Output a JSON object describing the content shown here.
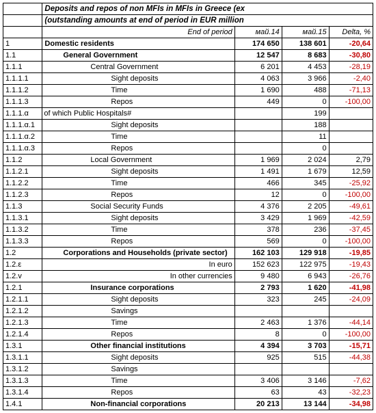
{
  "title1": "Deposits and repos of non MFIs in MFIs in Greece (ex",
  "title2": "(outstanding amounts at end of period in EUR million",
  "endOfPeriod": "End of period",
  "headers": {
    "c1": "май.14",
    "c2": "май.15",
    "c3": "Delta, %"
  },
  "rows": [
    {
      "code": "1",
      "label": "Domestic residents",
      "cls": "bold",
      "ind": "",
      "v1": "174 650",
      "v2": "138 601",
      "d": "-20,64",
      "neg": true
    },
    {
      "code": "1.1",
      "label": "General Government",
      "cls": "bold",
      "ind": "indent1",
      "v1": "12 547",
      "v2": "8 683",
      "d": "-30,80",
      "neg": true
    },
    {
      "code": "1.1.1",
      "label": "Central Government",
      "cls": "",
      "ind": "indent2",
      "v1": "6 201",
      "v2": "4 453",
      "d": "-28,19",
      "neg": true
    },
    {
      "code": "1.1.1.1",
      "label": "Sight deposits",
      "cls": "",
      "ind": "indent3",
      "v1": "4 063",
      "v2": "3 966",
      "d": "-2,40",
      "neg": true
    },
    {
      "code": "1.1.1.2",
      "label": "Time",
      "cls": "",
      "ind": "indent3",
      "v1": "1 690",
      "v2": "488",
      "d": "-71,13",
      "neg": true
    },
    {
      "code": "1.1.1.3",
      "label": "Repos",
      "cls": "",
      "ind": "indent3",
      "v1": "449",
      "v2": "0",
      "d": "-100,00",
      "neg": true
    },
    {
      "code": "1.1.1.α",
      "label": "of which       Public Hospitals#",
      "cls": "",
      "ind": "ofwhich",
      "v1": "",
      "v2": "199",
      "d": "",
      "neg": false
    },
    {
      "code": "1.1.1.α.1",
      "label": "Sight deposits",
      "cls": "",
      "ind": "indent3",
      "v1": "",
      "v2": "188",
      "d": "",
      "neg": false
    },
    {
      "code": "1.1.1.α.2",
      "label": "Time",
      "cls": "",
      "ind": "indent3",
      "v1": "",
      "v2": "11",
      "d": "",
      "neg": false
    },
    {
      "code": "1.1.1.α.3",
      "label": "Repos",
      "cls": "",
      "ind": "indent3",
      "v1": "",
      "v2": "0",
      "d": "",
      "neg": false
    },
    {
      "code": "1.1.2",
      "label": "Local Government",
      "cls": "",
      "ind": "indent2",
      "v1": "1 969",
      "v2": "2 024",
      "d": "2,79",
      "neg": false
    },
    {
      "code": "1.1.2.1",
      "label": "Sight deposits",
      "cls": "",
      "ind": "indent3",
      "v1": "1 491",
      "v2": "1 679",
      "d": "12,59",
      "neg": false
    },
    {
      "code": "1.1.2.2",
      "label": "Time",
      "cls": "",
      "ind": "indent3",
      "v1": "466",
      "v2": "345",
      "d": "-25,92",
      "neg": true
    },
    {
      "code": "1.1.2.3",
      "label": "Repos",
      "cls": "",
      "ind": "indent3",
      "v1": "12",
      "v2": "0",
      "d": "-100,00",
      "neg": true
    },
    {
      "code": "1.1.3",
      "label": "Social Security Funds",
      "cls": "",
      "ind": "indent2",
      "v1": "4 376",
      "v2": "2 205",
      "d": "-49,61",
      "neg": true
    },
    {
      "code": "1.1.3.1",
      "label": "Sight deposits",
      "cls": "",
      "ind": "indent3",
      "v1": "3 429",
      "v2": "1 969",
      "d": "-42,59",
      "neg": true
    },
    {
      "code": "1.1.3.2",
      "label": "Time",
      "cls": "",
      "ind": "indent3",
      "v1": "378",
      "v2": "236",
      "d": "-37,45",
      "neg": true
    },
    {
      "code": "1.1.3.3",
      "label": "Repos",
      "cls": "",
      "ind": "indent3",
      "v1": "569",
      "v2": "0",
      "d": "-100,00",
      "neg": true
    },
    {
      "code": "1.2",
      "label": "Corporations and Households (private sector)",
      "cls": "bold",
      "ind": "indent1",
      "v1": "162 103",
      "v2": "129 918",
      "d": "-19,85",
      "neg": true
    },
    {
      "code": "1.2.ε",
      "label": "In euro",
      "cls": "",
      "ind": "",
      "align": "right",
      "v1": "152 623",
      "v2": "122 975",
      "d": "-19,43",
      "neg": true
    },
    {
      "code": "1.2.v",
      "label": "In other currencies",
      "cls": "",
      "ind": "",
      "align": "right",
      "v1": "9 480",
      "v2": "6 943",
      "d": "-26,76",
      "neg": true
    },
    {
      "code": "1.2.1",
      "label": "Insurance corporations",
      "cls": "bold",
      "ind": "indent2",
      "v1": "2 793",
      "v2": "1 620",
      "d": "-41,98",
      "neg": true
    },
    {
      "code": "1.2.1.1",
      "label": "Sight deposits",
      "cls": "",
      "ind": "indent3",
      "v1": "323",
      "v2": "245",
      "d": "-24,09",
      "neg": true
    },
    {
      "code": "1.2.1.2",
      "label": "Savings",
      "cls": "",
      "ind": "indent3",
      "v1": "",
      "v2": "",
      "d": "",
      "neg": false
    },
    {
      "code": "1.2.1.3",
      "label": "Time",
      "cls": "",
      "ind": "indent3",
      "v1": "2 463",
      "v2": "1 376",
      "d": "-44,14",
      "neg": true
    },
    {
      "code": "1.2.1.4",
      "label": "Repos",
      "cls": "",
      "ind": "indent3",
      "v1": "8",
      "v2": "0",
      "d": "-100,00",
      "neg": true
    },
    {
      "code": "1.3.1",
      "label": "Other financial institutions",
      "cls": "bold",
      "ind": "indent2",
      "v1": "4 394",
      "v2": "3 703",
      "d": "-15,71",
      "neg": true
    },
    {
      "code": "1.3.1.1",
      "label": "Sight deposits",
      "cls": "",
      "ind": "indent3",
      "v1": "925",
      "v2": "515",
      "d": "-44,38",
      "neg": true
    },
    {
      "code": "1.3.1.2",
      "label": "Savings",
      "cls": "",
      "ind": "indent3",
      "v1": "",
      "v2": "",
      "d": "",
      "neg": false
    },
    {
      "code": "1.3.1.3",
      "label": "Time",
      "cls": "",
      "ind": "indent3",
      "v1": "3 406",
      "v2": "3 146",
      "d": "-7,62",
      "neg": true
    },
    {
      "code": "1.3.1.4",
      "label": "Repos",
      "cls": "",
      "ind": "indent3",
      "v1": "63",
      "v2": "43",
      "d": "-32,23",
      "neg": true
    },
    {
      "code": "1.4.1",
      "label": "Non-financial corporations",
      "cls": "bold",
      "ind": "indent2",
      "v1": "20 213",
      "v2": "13 144",
      "d": "-34,98",
      "neg": true
    }
  ]
}
